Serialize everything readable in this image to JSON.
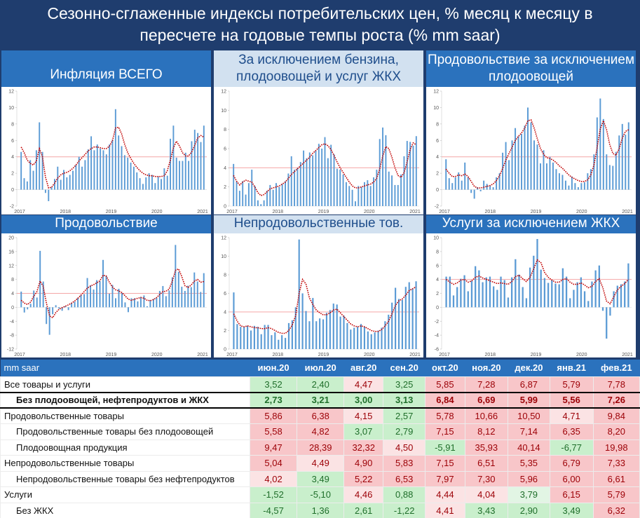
{
  "header": {
    "title_line1": "Сезонно-сглаженные индексы потребительских цен, % месяц к месяцу в",
    "title_line2": "пересчете на годовые темпы роста (% mm saar)"
  },
  "chart_data": [
    {
      "type": "bar",
      "title": "Инфляция ВСЕГО",
      "x_ticks": [
        "2017",
        "2018",
        "2019",
        "2020",
        "2021"
      ],
      "ylim": [
        -2,
        12
      ],
      "y_ticks": [
        -2,
        0,
        2,
        4,
        6,
        8,
        10,
        12
      ],
      "reference_line": 4,
      "series": [
        {
          "type": "bar",
          "values": [
            4.6,
            1.4,
            1.0,
            3.6,
            2.3,
            4.8,
            8.2,
            4.6,
            -0.4,
            -1.4,
            0.3,
            1.3,
            2.8,
            1.2,
            2.4,
            1.5,
            1.8,
            2.3,
            3.0,
            4.0,
            2.8,
            3.6,
            4.9,
            6.5,
            4.8,
            5.5,
            5.0,
            4.8,
            4.3,
            5.5,
            6.1,
            9.8,
            6.6,
            5.3,
            4.2,
            3.9,
            3.3,
            2.8,
            2.1,
            1.4,
            0.7,
            1.5,
            2.0,
            1.8,
            0.8,
            1.6,
            1.3,
            2.6,
            1.7,
            6.2,
            7.8,
            3.9,
            3.5,
            3.5,
            4.5,
            3.5,
            5.9,
            7.3,
            6.9,
            5.8,
            7.8
          ]
        },
        {
          "type": "line",
          "values": [
            5.2,
            4.5,
            3.6,
            3.2,
            3.0,
            3.5,
            5.0,
            4.0,
            1.5,
            0.2,
            0.3,
            0.8,
            1.4,
            1.8,
            2.0,
            2.1,
            2.3,
            2.6,
            3.0,
            3.5,
            3.9,
            4.3,
            4.7,
            5.0,
            5.2,
            5.2,
            5.1,
            5.0,
            5.0,
            5.3,
            6.0,
            7.5,
            7.6,
            6.8,
            5.5,
            4.5,
            3.8,
            3.2,
            2.7,
            2.3,
            2.0,
            1.8,
            1.7,
            1.7,
            1.6,
            1.6,
            1.6,
            1.7,
            2.3,
            3.6,
            5.1,
            5.9,
            5.3,
            4.5,
            4.1,
            4.1,
            4.6,
            5.4,
            6.3,
            6.6,
            6.4
          ]
        }
      ]
    },
    {
      "type": "bar",
      "title": "За исключением бензина, плодоовощей и услуг ЖКХ",
      "x_ticks": [
        "2017",
        "2018",
        "2019",
        "2020",
        "2021"
      ],
      "ylim": [
        0,
        12
      ],
      "y_ticks": [
        0,
        2,
        4,
        6,
        8,
        10,
        12
      ],
      "reference_line": 4,
      "series": [
        {
          "type": "bar",
          "values": [
            4.4,
            2.6,
            1.6,
            2.6,
            1.2,
            2.4,
            3.8,
            2.1,
            0.6,
            0.2,
            0.6,
            1.6,
            2.2,
            1.7,
            2.4,
            2.0,
            2.3,
            2.6,
            3.4,
            5.2,
            3.8,
            4.0,
            4.6,
            5.8,
            5.0,
            5.6,
            5.3,
            5.8,
            6.5,
            6.0,
            7.2,
            5.0,
            6.4,
            5.4,
            3.9,
            3.8,
            3.3,
            2.5,
            2.1,
            1.7,
            0.5,
            2.1,
            2.0,
            2.5,
            2.7,
            2.1,
            3.0,
            3.8,
            7.0,
            8.2,
            7.4,
            3.6,
            3.2,
            2.2,
            2.2,
            3.3,
            5.2,
            6.8,
            6.7,
            6.3,
            7.3
          ]
        },
        {
          "type": "line",
          "values": [
            3.2,
            2.6,
            2.2,
            2.5,
            2.7,
            2.6,
            2.5,
            2.0,
            1.4,
            1.1,
            1.2,
            1.5,
            1.8,
            1.9,
            2.0,
            2.1,
            2.3,
            2.5,
            2.9,
            3.3,
            3.6,
            3.9,
            4.2,
            4.5,
            4.8,
            5.1,
            5.5,
            5.8,
            6.1,
            6.4,
            6.5,
            6.3,
            5.9,
            5.3,
            4.6,
            4.0,
            3.5,
            3.0,
            2.5,
            2.1,
            1.9,
            1.9,
            2.0,
            2.1,
            2.2,
            2.3,
            2.5,
            2.9,
            3.9,
            5.2,
            6.2,
            6.0,
            5.1,
            4.0,
            3.2,
            3.0,
            3.5,
            4.6,
            5.9,
            6.6,
            6.4
          ]
        }
      ]
    },
    {
      "type": "bar",
      "title": "Продовольствие за исключением плодоовощей",
      "x_ticks": [
        "2017",
        "2018",
        "2019",
        "2020",
        "2021"
      ],
      "ylim": [
        -2,
        12
      ],
      "y_ticks": [
        -2,
        0,
        2,
        4,
        6,
        8,
        10,
        12
      ],
      "reference_line": 4,
      "series": [
        {
          "type": "bar",
          "values": [
            3.7,
            1.4,
            0.8,
            1.5,
            2.1,
            1.1,
            3.3,
            1.5,
            -0.4,
            -1.1,
            0.3,
            -0.2,
            1.1,
            0.7,
            0.5,
            0.3,
            1.5,
            2.0,
            4.5,
            5.8,
            3.6,
            6.0,
            7.5,
            6.5,
            6.8,
            7.8,
            10.0,
            8.2,
            6.0,
            5.5,
            3.2,
            4.8,
            3.2,
            4.0,
            3.3,
            2.5,
            2.0,
            1.8,
            1.1,
            0.5,
            1.6,
            0.8,
            0.3,
            0.8,
            0.9,
            2.0,
            2.5,
            4.3,
            8.8,
            11.1,
            8.6,
            4.3,
            3.0,
            2.9,
            4.6,
            6.6,
            8.0,
            6.7,
            8.2
          ]
        },
        {
          "type": "line",
          "values": [
            2.5,
            2.0,
            1.6,
            1.6,
            1.8,
            1.7,
            1.9,
            1.6,
            1.0,
            0.4,
            0.2,
            0.2,
            0.3,
            0.4,
            0.5,
            0.7,
            1.1,
            1.7,
            2.6,
            3.6,
            4.4,
            5.2,
            6.0,
            6.5,
            6.9,
            7.5,
            8.4,
            8.5,
            7.5,
            6.2,
            5.0,
            4.3,
            3.9,
            3.8,
            3.6,
            3.3,
            2.9,
            2.6,
            2.2,
            1.8,
            1.5,
            1.3,
            1.1,
            1.0,
            1.0,
            1.2,
            1.8,
            3.0,
            5.1,
            7.4,
            8.4,
            7.3,
            5.5,
            4.4,
            4.2,
            5.0,
            6.3,
            7.1,
            7.3
          ]
        }
      ]
    },
    {
      "type": "bar",
      "title": "Продовольствие",
      "x_ticks": [
        "2017",
        "2018",
        "2019",
        "2020",
        "2021"
      ],
      "ylim": [
        -12,
        20
      ],
      "y_ticks": [
        -12,
        -8,
        -4,
        0,
        4,
        8,
        12,
        16,
        20
      ],
      "reference_line": 4,
      "series": [
        {
          "type": "bar",
          "values": [
            4.5,
            -1.5,
            -0.6,
            1.0,
            4.8,
            2.8,
            16.2,
            7.4,
            -4.8,
            -7.9,
            -2.0,
            0.6,
            -0.4,
            -1.0,
            0.3,
            -0.8,
            1.2,
            1.6,
            2.7,
            3.6,
            3.8,
            8.4,
            6.3,
            5.1,
            7.8,
            7.5,
            13.6,
            9.1,
            3.9,
            6.4,
            2.6,
            5.3,
            4.1,
            1.4,
            -1.4,
            2.6,
            2.6,
            1.7,
            3.0,
            3.4,
            0.3,
            2.0,
            2.4,
            2.7,
            4.7,
            6.1,
            3.2,
            4.8,
            8.6,
            17.9,
            10.2,
            5.9,
            4.7,
            6.2,
            5.8,
            10.0,
            7.4,
            4.4,
            9.8
          ]
        },
        {
          "type": "line",
          "values": [
            2.0,
            1.2,
            0.8,
            1.5,
            3.2,
            4.5,
            7.5,
            6.0,
            1.2,
            -2.5,
            -3.0,
            -1.5,
            -0.6,
            -0.1,
            0.3,
            0.7,
            1.2,
            1.8,
            2.6,
            3.5,
            4.5,
            5.5,
            6.1,
            6.5,
            7.0,
            7.6,
            9.2,
            9.0,
            7.2,
            5.8,
            5.0,
            4.7,
            4.2,
            3.3,
            2.3,
            2.0,
            2.3,
            2.6,
            2.8,
            2.6,
            2.0,
            1.9,
            2.2,
            2.8,
            3.7,
            4.5,
            4.6,
            5.2,
            7.5,
            10.6,
            11.0,
            8.8,
            6.2,
            5.7,
            6.4,
            7.5,
            8.0,
            7.2,
            7.4
          ]
        }
      ]
    },
    {
      "type": "bar",
      "title": "Непродовольственные тов.",
      "x_ticks": [
        "2017",
        "2018",
        "2019",
        "2020",
        "2021"
      ],
      "ylim": [
        0,
        12
      ],
      "y_ticks": [
        0,
        2,
        4,
        6,
        8,
        10,
        12
      ],
      "reference_line": 4,
      "series": [
        {
          "type": "bar",
          "values": [
            6.1,
            2.7,
            2.4,
            2.4,
            2.5,
            2.0,
            2.5,
            2.4,
            1.6,
            2.6,
            2.6,
            1.5,
            1.8,
            1.0,
            1.5,
            1.2,
            2.8,
            3.1,
            4.5,
            11.8,
            6.0,
            4.1,
            3.0,
            5.5,
            3.0,
            3.3,
            3.2,
            3.9,
            4.2,
            4.9,
            4.8,
            3.5,
            3.6,
            2.8,
            2.1,
            2.3,
            2.4,
            2.7,
            2.4,
            1.9,
            1.6,
            1.8,
            2.0,
            2.3,
            3.0,
            3.7,
            5.0,
            6.6,
            5.4,
            5.3,
            6.7,
            7.2,
            6.5,
            7.3
          ]
        },
        {
          "type": "line",
          "values": [
            3.8,
            3.0,
            2.5,
            2.4,
            2.5,
            2.4,
            2.3,
            2.3,
            2.2,
            2.2,
            2.3,
            2.2,
            2.0,
            1.8,
            1.7,
            1.7,
            2.0,
            2.6,
            3.6,
            6.0,
            7.5,
            7.0,
            5.5,
            4.8,
            4.2,
            3.9,
            3.7,
            3.7,
            3.9,
            4.2,
            4.3,
            3.9,
            3.5,
            3.1,
            2.7,
            2.5,
            2.4,
            2.5,
            2.4,
            2.2,
            2.0,
            1.9,
            1.9,
            2.1,
            2.5,
            3.0,
            3.8,
            4.7,
            5.2,
            5.4,
            5.8,
            6.3,
            6.5,
            6.7
          ]
        }
      ]
    },
    {
      "type": "bar",
      "title": "Услуги за исключением ЖКХ",
      "x_ticks": [
        "2017",
        "2018",
        "2019",
        "2020",
        "2021"
      ],
      "ylim": [
        -6,
        10
      ],
      "y_ticks": [
        -6,
        -4,
        -2,
        0,
        2,
        4,
        6,
        8,
        10
      ],
      "reference_line": 4,
      "series": [
        {
          "type": "bar",
          "values": [
            4.4,
            4.4,
            1.7,
            2.9,
            4.1,
            4.6,
            2.3,
            3.8,
            5.9,
            5.3,
            3.6,
            4.3,
            4.4,
            3.0,
            2.5,
            4.4,
            3.9,
            1.4,
            4.3,
            6.9,
            4.7,
            2.9,
            1.3,
            5.7,
            7.4,
            9.8,
            5.4,
            4.2,
            3.5,
            3.9,
            3.4,
            3.3,
            5.6,
            4.4,
            1.3,
            2.5,
            3.6,
            4.3,
            2.3,
            0.9,
            3.7,
            5.3,
            6.0,
            -0.5,
            -4.5,
            -1.2,
            2.3,
            3.1,
            3.3,
            3.7,
            6.3
          ]
        },
        {
          "type": "line",
          "values": [
            4.0,
            3.6,
            3.3,
            3.5,
            3.9,
            4.0,
            3.6,
            3.8,
            4.3,
            4.5,
            4.2,
            4.0,
            3.8,
            3.6,
            3.4,
            3.5,
            3.4,
            3.3,
            3.7,
            4.4,
            4.6,
            4.1,
            3.7,
            4.3,
            5.5,
            6.8,
            6.4,
            5.0,
            4.3,
            3.9,
            3.6,
            3.6,
            4.0,
            4.1,
            3.6,
            3.3,
            3.3,
            3.5,
            3.2,
            2.8,
            3.0,
            3.7,
            4.1,
            2.8,
            0.9,
            0.5,
            1.5,
            2.5,
            3.0,
            3.4,
            4.0
          ]
        }
      ]
    }
  ],
  "table": {
    "columns": [
      "mm saar",
      "июн.20",
      "июл.20",
      "авг.20",
      "сен.20",
      "окт.20",
      "ноя.20",
      "дек.20",
      "янв.21",
      "фев.21"
    ],
    "rows": [
      {
        "label": "Все товары и услуги",
        "indent": false,
        "bold": false,
        "values": [
          "3,52",
          "2,40",
          "4,47",
          "3,25",
          "5,85",
          "7,28",
          "6,87",
          "5,79",
          "7,78"
        ],
        "colors": [
          "g",
          "g",
          "wr",
          "g",
          "r",
          "r",
          "r",
          "r",
          "r"
        ]
      },
      {
        "label": "Без плодоовощей, нефтепродуктов и ЖКХ",
        "indent": true,
        "bold": true,
        "values": [
          "2,73",
          "3,21",
          "3,00",
          "3,13",
          "6,84",
          "6,69",
          "5,99",
          "5,56",
          "7,26"
        ],
        "colors": [
          "g",
          "g",
          "g",
          "g",
          "r",
          "r",
          "r",
          "r",
          "r"
        ]
      },
      {
        "label": "Продовольственные товары",
        "indent": false,
        "bold": false,
        "values": [
          "5,86",
          "6,38",
          "4,15",
          "2,57",
          "5,78",
          "10,66",
          "10,50",
          "4,71",
          "9,84"
        ],
        "colors": [
          "r",
          "r",
          "wr",
          "g",
          "r",
          "r",
          "r",
          "wr",
          "r"
        ]
      },
      {
        "label": "Продовольственные товары без плодоовощей",
        "indent": true,
        "bold": false,
        "values": [
          "5,58",
          "4,82",
          "3,07",
          "2,79",
          "7,15",
          "8,12",
          "7,14",
          "6,35",
          "8,20"
        ],
        "colors": [
          "r",
          "r",
          "g",
          "g",
          "r",
          "r",
          "r",
          "r",
          "r"
        ]
      },
      {
        "label": "Плодоовощная продукция",
        "indent": true,
        "bold": false,
        "values": [
          "9,47",
          "28,39",
          "32,32",
          "4,50",
          "-5,91",
          "35,93",
          "40,14",
          "-6,77",
          "19,98"
        ],
        "colors": [
          "r",
          "r",
          "r",
          "wr",
          "g",
          "r",
          "r",
          "g",
          "r"
        ]
      },
      {
        "label": "Непродовольственные товары",
        "indent": false,
        "bold": false,
        "values": [
          "5,04",
          "4,49",
          "4,90",
          "5,83",
          "7,15",
          "6,51",
          "5,35",
          "6,79",
          "7,33"
        ],
        "colors": [
          "r",
          "wr",
          "r",
          "r",
          "r",
          "r",
          "r",
          "r",
          "r"
        ]
      },
      {
        "label": "Непродовольственные товары без нефтепродуктов",
        "indent": true,
        "bold": false,
        "values": [
          "4,02",
          "3,49",
          "5,22",
          "6,53",
          "7,97",
          "7,30",
          "5,96",
          "6,00",
          "6,61"
        ],
        "colors": [
          "wr",
          "g",
          "r",
          "r",
          "r",
          "r",
          "r",
          "r",
          "r"
        ]
      },
      {
        "label": "Услуги",
        "indent": false,
        "bold": false,
        "values": [
          "-1,52",
          "-5,10",
          "4,46",
          "0,88",
          "4,44",
          "4,04",
          "3,79",
          "6,15",
          "5,79"
        ],
        "colors": [
          "g",
          "g",
          "wr",
          "g",
          "wr",
          "wr",
          "wg",
          "r",
          "r"
        ]
      },
      {
        "label": "Без ЖКХ",
        "indent": true,
        "bold": false,
        "values": [
          "-4,57",
          "1,36",
          "2,61",
          "-1,22",
          "4,41",
          "3,43",
          "2,90",
          "3,49",
          "6,32"
        ],
        "colors": [
          "g",
          "g",
          "g",
          "g",
          "wr",
          "g",
          "g",
          "g",
          "r"
        ]
      }
    ]
  },
  "colors": {
    "bar": "#5b9bd5",
    "smooth_line": "#c00000",
    "ref_line": "#f4a6a6",
    "header_bg": "#1f3d6e",
    "title_bar": "#2b72bd",
    "title_bar_light": "#d2e1f0"
  }
}
